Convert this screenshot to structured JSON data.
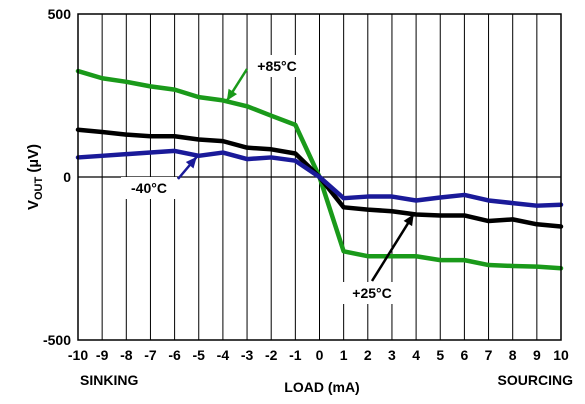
{
  "chart_data": {
    "type": "line",
    "title": "",
    "xlabel": "LOAD (mA)",
    "ylabel_main": "V",
    "ylabel_sub": "OUT",
    "ylabel_unit": " (µV)",
    "x": [
      -10,
      -9,
      -8,
      -7,
      -6,
      -5,
      -4,
      -3,
      -2,
      -1,
      0,
      1,
      2,
      3,
      4,
      5,
      6,
      7,
      8,
      9,
      10
    ],
    "x_tick_labels": [
      "-10",
      "-9",
      "-8",
      "-7",
      "-6",
      "-5",
      "-4",
      "-3",
      "-2",
      "-1",
      "0",
      "1",
      "2",
      "3",
      "4",
      "5",
      "6",
      "7",
      "8",
      "9",
      "10"
    ],
    "ylim": [
      -500,
      500
    ],
    "y_ticks": [
      -500,
      0,
      500
    ],
    "y_tick_labels": [
      "-500",
      "0",
      "500"
    ],
    "grid": "vertical lines at each x",
    "corner_labels": {
      "left": "SINKING",
      "right": "SOURCING"
    },
    "series": [
      {
        "name": "+85°C",
        "color": "#1a9a1a",
        "values": [
          325,
          303,
          292,
          278,
          268,
          245,
          235,
          217,
          188,
          160,
          0,
          -228,
          -243,
          -243,
          -243,
          -255,
          -255,
          -270,
          -273,
          -275,
          -280
        ]
      },
      {
        "name": "+25°C",
        "color": "#000000",
        "values": [
          145,
          138,
          130,
          125,
          125,
          115,
          110,
          90,
          85,
          72,
          0,
          -93,
          -100,
          -105,
          -115,
          -118,
          -118,
          -135,
          -130,
          -145,
          -152
        ]
      },
      {
        "name": "-40°C",
        "color": "#1a1a99",
        "values": [
          60,
          65,
          70,
          75,
          80,
          65,
          75,
          55,
          60,
          50,
          0,
          -65,
          -60,
          -60,
          -72,
          -63,
          -55,
          -72,
          -80,
          -88,
          -85
        ]
      }
    ],
    "annotations": [
      {
        "text": "+85°C",
        "series": "+85°C",
        "x": -4,
        "y": 225
      },
      {
        "text": "-40°C",
        "series": "-40°C",
        "x": -6,
        "y": 15
      },
      {
        "text": "+25°C",
        "series": "+25°C",
        "x": 3.8,
        "y": -110
      }
    ]
  }
}
